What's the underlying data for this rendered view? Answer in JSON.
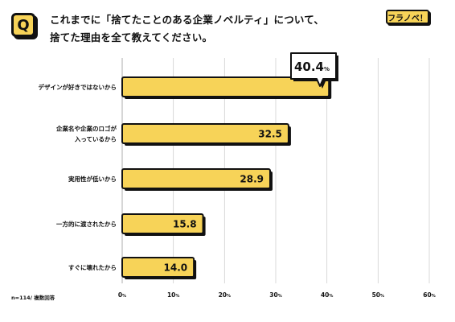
{
  "question_badge": "Q",
  "title_line1": "これまでに「捨てたことのある企業ノベルティ」について、",
  "title_line2": "捨てた理由を全て教えてください。",
  "brand_logo_text": "フラノベ！",
  "note": "n=114/ 複数回答",
  "chart_data": {
    "type": "bar",
    "orientation": "horizontal",
    "categories": [
      [
        "デザインが好きではないから"
      ],
      [
        "企業名や企業のロゴが",
        "入っているから"
      ],
      [
        "実用性が低いから"
      ],
      [
        "一方的に渡されたから"
      ],
      [
        "すぐに壊れたから"
      ]
    ],
    "values": [
      40.4,
      32.5,
      28.9,
      15.8,
      14.0
    ],
    "value_labels": [
      "40.4",
      "32.5",
      "28.9",
      "15.8",
      "14.0"
    ],
    "highlight_unit": "%",
    "xlim": [
      0,
      60
    ],
    "xticks": [
      0,
      10,
      20,
      30,
      40,
      50,
      60
    ],
    "tick_unit": "%",
    "grid": true,
    "bar_color": "#f7d358",
    "outline_color": "#111111"
  }
}
